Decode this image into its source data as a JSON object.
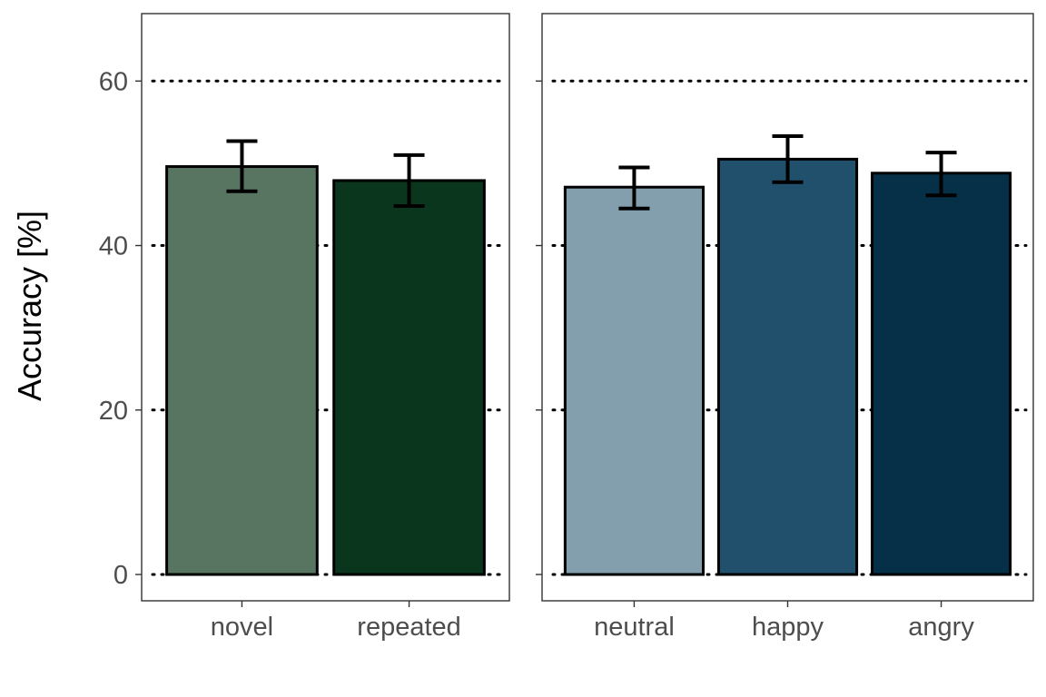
{
  "chart_data": {
    "type": "bar",
    "ylabel": "Accuracy [%]",
    "ylim": [
      -3.2,
      68.2
    ],
    "yticks": [
      0,
      20,
      40,
      60
    ],
    "ytick_labels": [
      "0",
      "20",
      "40",
      "60"
    ],
    "grid": "horizontal dotted at y ticks",
    "panels": [
      {
        "categories": [
          "novel",
          "repeated"
        ],
        "values": [
          49.6,
          47.9
        ],
        "error_low": [
          46.6,
          44.8
        ],
        "error_high": [
          52.7,
          51.0
        ],
        "colors": [
          "#587561",
          "#0a361e"
        ]
      },
      {
        "categories": [
          "neutral",
          "happy",
          "angry"
        ],
        "values": [
          47.1,
          50.5,
          48.8
        ],
        "error_low": [
          44.5,
          47.7,
          46.1
        ],
        "error_high": [
          49.5,
          53.3,
          51.3
        ],
        "colors": [
          "#839fad",
          "#20506c",
          "#053048"
        ]
      }
    ]
  }
}
